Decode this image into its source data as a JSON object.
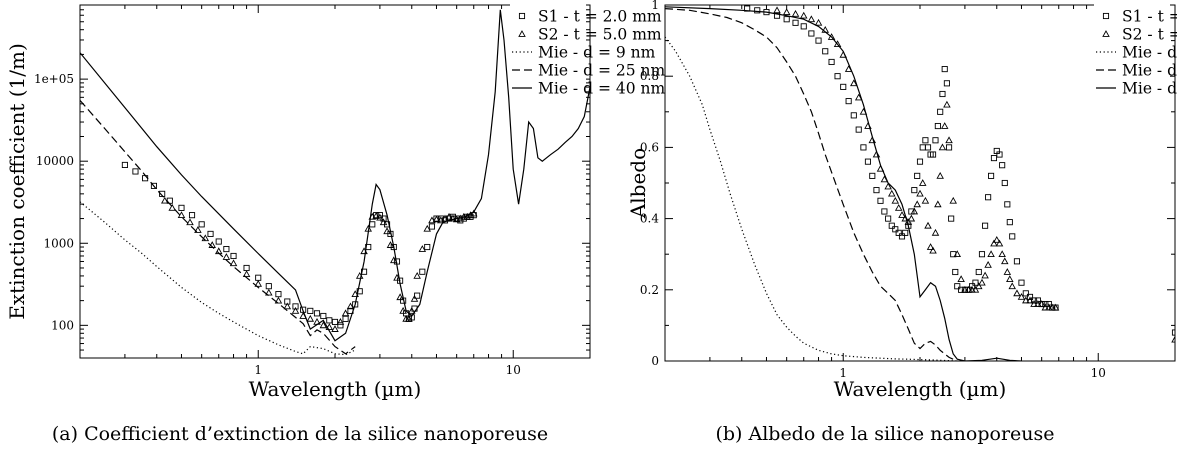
{
  "captions": [
    "(a) Coefficient d’extinction de la silice nanoporeuse",
    "(b) Albedo de la silice nanoporeuse"
  ],
  "legend_entries": [
    "S1 - t = 2.0 mm",
    "S2 - t = 5.0 mm",
    "Mie - d = 9 nm",
    "Mie - d = 25 nm",
    "Mie - d = 40 nm"
  ],
  "chart_data": [
    {
      "type": "scatter",
      "xlabel": "Wavelength (µm)",
      "ylabel": "Extinction coefficient (1/m)",
      "xscale": "log",
      "yscale": "log",
      "xlim": [
        0.2,
        20
      ],
      "ylim": [
        40,
        800000
      ],
      "x_ticks": [
        {
          "value": 1,
          "label": "1"
        },
        {
          "value": 10,
          "label": "10"
        }
      ],
      "y_ticks": [
        {
          "value": 100,
          "label": "100"
        },
        {
          "value": 1000,
          "label": "1000"
        },
        {
          "value": 10000,
          "label": "10000"
        },
        {
          "value": 100000,
          "label": "1e+05"
        }
      ],
      "grid": false,
      "legend_position": "top-right",
      "series": [
        {
          "name": "S1 - t = 2.0 mm",
          "style": "square-markers",
          "x": [
            0.3,
            0.33,
            0.36,
            0.39,
            0.42,
            0.45,
            0.5,
            0.55,
            0.6,
            0.65,
            0.7,
            0.75,
            0.8,
            0.9,
            1.0,
            1.1,
            1.2,
            1.3,
            1.4,
            1.5,
            1.6,
            1.7,
            1.8,
            1.9,
            2.0,
            2.1,
            2.2,
            2.3,
            2.4,
            2.5,
            2.6,
            2.7,
            2.8,
            2.9,
            3.0,
            3.1,
            3.2,
            3.3,
            3.4,
            3.5,
            3.6,
            3.7,
            3.8,
            3.9,
            4.0,
            4.1,
            4.2,
            4.4,
            4.6,
            4.8,
            5.0,
            5.2,
            5.4,
            5.6,
            5.8,
            6.0,
            6.2,
            6.4,
            6.6,
            6.8,
            7.0
          ],
          "y": [
            9000,
            7500,
            6200,
            5000,
            4000,
            3300,
            2700,
            2200,
            1700,
            1300,
            1050,
            850,
            700,
            500,
            380,
            300,
            240,
            195,
            170,
            155,
            150,
            140,
            130,
            115,
            110,
            100,
            120,
            150,
            180,
            260,
            450,
            900,
            1700,
            2200,
            2200,
            2000,
            1700,
            1300,
            900,
            600,
            350,
            200,
            140,
            120,
            125,
            160,
            230,
            450,
            900,
            1600,
            2000,
            2000,
            1900,
            2000,
            2100,
            2000,
            1900,
            2000,
            2100,
            2100,
            2200
          ]
        },
        {
          "name": "S2 - t = 5.0 mm",
          "style": "triangle-markers",
          "x": [
            0.43,
            0.46,
            0.5,
            0.54,
            0.58,
            0.62,
            0.66,
            0.7,
            0.75,
            0.8,
            0.9,
            1.0,
            1.1,
            1.2,
            1.3,
            1.4,
            1.5,
            1.6,
            1.7,
            1.8,
            1.9,
            2.0,
            2.1,
            2.2,
            2.3,
            2.4,
            2.5,
            2.6,
            2.7,
            2.8,
            2.9,
            3.0,
            3.1,
            3.2,
            3.3,
            3.4,
            3.5,
            3.6,
            3.7,
            3.8,
            3.9,
            4.0,
            4.1,
            4.2,
            4.4,
            4.6,
            4.8,
            5.0,
            5.2,
            5.4,
            5.6,
            5.8,
            6.0,
            6.2,
            6.4,
            6.6,
            6.8,
            7.0
          ],
          "y": [
            3300,
            2700,
            2200,
            1800,
            1450,
            1150,
            950,
            800,
            680,
            570,
            420,
            320,
            250,
            200,
            170,
            150,
            130,
            120,
            110,
            100,
            95,
            90,
            110,
            140,
            170,
            240,
            400,
            800,
            1500,
            2100,
            2150,
            2050,
            1800,
            1400,
            950,
            620,
            380,
            220,
            150,
            120,
            120,
            150,
            210,
            400,
            850,
            1500,
            1900,
            1950,
            1900,
            2000,
            2100,
            2000,
            1950,
            2000,
            2100,
            2100,
            2200,
            2300
          ]
        },
        {
          "name": "Mie - d = 9 nm",
          "style": "dotted",
          "x": [
            0.2,
            0.25,
            0.3,
            0.35,
            0.4,
            0.5,
            0.6,
            0.7,
            0.8,
            1.0,
            1.2,
            1.4,
            1.5,
            1.6,
            1.8,
            2.0,
            2.2,
            2.4
          ],
          "y": [
            3200,
            1800,
            1100,
            750,
            520,
            290,
            190,
            140,
            110,
            75,
            58,
            48,
            45,
            55,
            52,
            45,
            44,
            50
          ]
        },
        {
          "name": "Mie - d = 25 nm",
          "style": "dashed",
          "x": [
            0.2,
            0.25,
            0.3,
            0.35,
            0.4,
            0.5,
            0.6,
            0.7,
            0.8,
            1.0,
            1.2,
            1.4,
            1.5,
            1.6,
            1.7,
            1.8,
            2.0,
            2.2,
            2.4
          ],
          "y": [
            55000,
            25000,
            13000,
            7500,
            4500,
            2100,
            1200,
            760,
            520,
            290,
            185,
            125,
            105,
            75,
            88,
            80,
            55,
            45,
            55
          ]
        },
        {
          "name": "Mie - d = 40 nm",
          "style": "solid",
          "x": [
            0.2,
            0.3,
            0.4,
            0.5,
            0.6,
            0.8,
            1.0,
            1.2,
            1.4,
            1.5,
            1.6,
            1.8,
            2.0,
            2.2,
            2.4,
            2.6,
            2.8,
            2.9,
            3.0,
            3.2,
            3.4,
            3.6,
            3.8,
            4.0,
            4.3,
            4.6,
            5.0,
            5.3,
            5.6,
            6.0,
            6.5,
            7.0,
            7.5,
            8.0,
            8.5,
            8.9,
            9.2,
            9.6,
            10.0,
            10.5,
            11.0,
            11.5,
            12.0,
            12.5,
            13.0,
            14.0,
            15.0,
            16.0,
            17.0,
            18.0,
            19.0,
            20.0
          ],
          "y": [
            210000,
            45000,
            15000,
            6800,
            3700,
            1500,
            750,
            430,
            270,
            150,
            90,
            115,
            65,
            80,
            180,
            600,
            3000,
            5200,
            4500,
            2200,
            900,
            320,
            150,
            130,
            180,
            450,
            1300,
            1800,
            1900,
            2000,
            2100,
            2400,
            3500,
            12000,
            70000,
            700000,
            300000,
            60000,
            8000,
            3000,
            8000,
            30000,
            25000,
            11000,
            10000,
            12000,
            14000,
            17000,
            20000,
            25000,
            35000,
            80000
          ]
        }
      ]
    },
    {
      "type": "scatter",
      "xlabel": "Wavelength (µm)",
      "ylabel": "Albedo",
      "xscale": "log",
      "yscale": "linear",
      "xlim": [
        0.2,
        20
      ],
      "ylim": [
        0,
        1
      ],
      "x_ticks": [
        {
          "value": 1,
          "label": "1"
        },
        {
          "value": 10,
          "label": "10"
        }
      ],
      "y_ticks": [
        {
          "value": 0,
          "label": "0"
        },
        {
          "value": 0.2,
          "label": "0.2"
        },
        {
          "value": 0.4,
          "label": "0.4"
        },
        {
          "value": 0.6,
          "label": "0.6"
        },
        {
          "value": 0.8,
          "label": "0.8"
        },
        {
          "value": 1,
          "label": "1"
        }
      ],
      "grid": false,
      "legend_position": "top-right",
      "series": [
        {
          "name": "S1 - t = 2.0 mm",
          "style": "square-markers",
          "x": [
            0.42,
            0.46,
            0.5,
            0.55,
            0.6,
            0.65,
            0.7,
            0.75,
            0.8,
            0.85,
            0.9,
            0.95,
            1.0,
            1.05,
            1.1,
            1.15,
            1.2,
            1.25,
            1.3,
            1.35,
            1.4,
            1.45,
            1.5,
            1.55,
            1.6,
            1.65,
            1.7,
            1.75,
            1.8,
            1.85,
            1.9,
            1.95,
            2.0,
            2.05,
            2.1,
            2.15,
            2.2,
            2.25,
            2.3,
            2.35,
            2.4,
            2.45,
            2.5,
            2.55,
            2.6,
            2.65,
            2.7,
            2.75,
            2.8,
            2.9,
            3.0,
            3.1,
            3.2,
            3.3,
            3.4,
            3.5,
            3.6,
            3.7,
            3.8,
            3.9,
            4.0,
            4.1,
            4.2,
            4.3,
            4.4,
            4.5,
            4.6,
            4.8,
            5.0,
            5.2,
            5.4,
            5.6,
            5.8,
            6.0,
            6.2,
            6.4,
            6.6,
            6.8,
            20.0
          ],
          "y": [
            0.99,
            0.985,
            0.98,
            0.97,
            0.96,
            0.95,
            0.94,
            0.92,
            0.9,
            0.87,
            0.84,
            0.8,
            0.77,
            0.73,
            0.69,
            0.65,
            0.6,
            0.56,
            0.52,
            0.48,
            0.45,
            0.42,
            0.4,
            0.38,
            0.37,
            0.36,
            0.35,
            0.36,
            0.38,
            0.42,
            0.48,
            0.52,
            0.56,
            0.6,
            0.62,
            0.6,
            0.58,
            0.58,
            0.62,
            0.66,
            0.7,
            0.75,
            0.82,
            0.78,
            0.6,
            0.4,
            0.3,
            0.25,
            0.21,
            0.2,
            0.2,
            0.2,
            0.21,
            0.22,
            0.25,
            0.3,
            0.38,
            0.46,
            0.52,
            0.57,
            0.59,
            0.58,
            0.55,
            0.5,
            0.44,
            0.39,
            0.35,
            0.28,
            0.22,
            0.19,
            0.18,
            0.17,
            0.17,
            0.16,
            0.16,
            0.16,
            0.15,
            0.15,
            0.08
          ]
        },
        {
          "name": "S2 - t = 5.0 mm",
          "style": "triangle-markers",
          "x": [
            0.55,
            0.6,
            0.65,
            0.7,
            0.75,
            0.8,
            0.85,
            0.9,
            0.95,
            1.0,
            1.05,
            1.1,
            1.15,
            1.2,
            1.25,
            1.3,
            1.35,
            1.4,
            1.45,
            1.5,
            1.55,
            1.6,
            1.65,
            1.7,
            1.75,
            1.8,
            1.85,
            1.9,
            1.95,
            2.0,
            2.05,
            2.1,
            2.15,
            2.2,
            2.25,
            2.3,
            2.35,
            2.4,
            2.45,
            2.5,
            2.55,
            2.6,
            2.7,
            2.8,
            2.9,
            3.0,
            3.1,
            3.2,
            3.3,
            3.4,
            3.5,
            3.6,
            3.7,
            3.8,
            3.9,
            4.0,
            4.1,
            4.2,
            4.3,
            4.4,
            4.5,
            4.6,
            4.8,
            5.0,
            5.2,
            5.4,
            5.6,
            5.8,
            6.0,
            6.2,
            6.4,
            6.6,
            6.8,
            20.0
          ],
          "y": [
            0.985,
            0.98,
            0.975,
            0.97,
            0.96,
            0.95,
            0.93,
            0.91,
            0.89,
            0.86,
            0.82,
            0.78,
            0.74,
            0.7,
            0.66,
            0.62,
            0.58,
            0.54,
            0.51,
            0.49,
            0.47,
            0.45,
            0.43,
            0.41,
            0.4,
            0.39,
            0.4,
            0.42,
            0.44,
            0.47,
            0.5,
            0.45,
            0.38,
            0.32,
            0.31,
            0.36,
            0.44,
            0.52,
            0.6,
            0.66,
            0.72,
            0.62,
            0.45,
            0.3,
            0.23,
            0.2,
            0.2,
            0.2,
            0.2,
            0.21,
            0.22,
            0.24,
            0.27,
            0.3,
            0.33,
            0.34,
            0.33,
            0.3,
            0.28,
            0.25,
            0.23,
            0.21,
            0.19,
            0.18,
            0.17,
            0.17,
            0.16,
            0.16,
            0.16,
            0.15,
            0.15,
            0.15,
            0.15,
            0.06
          ]
        },
        {
          "name": "Mie - d = 9 nm",
          "style": "dotted",
          "x": [
            0.2,
            0.22,
            0.25,
            0.28,
            0.3,
            0.33,
            0.36,
            0.4,
            0.45,
            0.5,
            0.55,
            0.6,
            0.65,
            0.7,
            0.8,
            0.9,
            1.0,
            1.2,
            1.4,
            1.6,
            1.8,
            2.0,
            2.2,
            2.4,
            2.6,
            2.8
          ],
          "y": [
            0.91,
            0.87,
            0.8,
            0.72,
            0.65,
            0.56,
            0.47,
            0.37,
            0.27,
            0.19,
            0.13,
            0.095,
            0.07,
            0.05,
            0.03,
            0.02,
            0.015,
            0.01,
            0.008,
            0.006,
            0.005,
            0.004,
            0.003,
            0.002,
            0.001,
            0
          ]
        },
        {
          "name": "Mie - d = 25 nm",
          "style": "dashed",
          "x": [
            0.2,
            0.25,
            0.3,
            0.35,
            0.4,
            0.45,
            0.5,
            0.55,
            0.6,
            0.65,
            0.7,
            0.75,
            0.8,
            0.85,
            0.9,
            1.0,
            1.1,
            1.2,
            1.3,
            1.4,
            1.5,
            1.6,
            1.7,
            1.8,
            1.9,
            2.0,
            2.1,
            2.2,
            2.3,
            2.4,
            2.5,
            2.6,
            2.7,
            2.8
          ],
          "y": [
            0.99,
            0.985,
            0.975,
            0.965,
            0.95,
            0.93,
            0.91,
            0.88,
            0.84,
            0.8,
            0.75,
            0.7,
            0.64,
            0.58,
            0.53,
            0.44,
            0.36,
            0.3,
            0.25,
            0.21,
            0.19,
            0.17,
            0.13,
            0.09,
            0.05,
            0.035,
            0.05,
            0.055,
            0.045,
            0.03,
            0.02,
            0.01,
            0.005,
            0
          ]
        },
        {
          "name": "Mie - d = 40 nm",
          "style": "solid",
          "x": [
            0.2,
            0.3,
            0.4,
            0.5,
            0.6,
            0.7,
            0.8,
            0.9,
            1.0,
            1.1,
            1.2,
            1.3,
            1.4,
            1.5,
            1.6,
            1.7,
            1.8,
            1.9,
            2.0,
            2.1,
            2.2,
            2.3,
            2.4,
            2.5,
            2.6,
            2.7,
            2.8,
            3.0,
            3.5,
            4.0,
            4.5,
            5.0
          ],
          "y": [
            0.995,
            0.99,
            0.985,
            0.98,
            0.97,
            0.96,
            0.94,
            0.91,
            0.87,
            0.8,
            0.72,
            0.63,
            0.55,
            0.5,
            0.48,
            0.44,
            0.38,
            0.3,
            0.18,
            0.2,
            0.22,
            0.21,
            0.17,
            0.12,
            0.06,
            0.02,
            0.005,
            0,
            0.002,
            0.008,
            0.002,
            0
          ]
        }
      ]
    }
  ]
}
